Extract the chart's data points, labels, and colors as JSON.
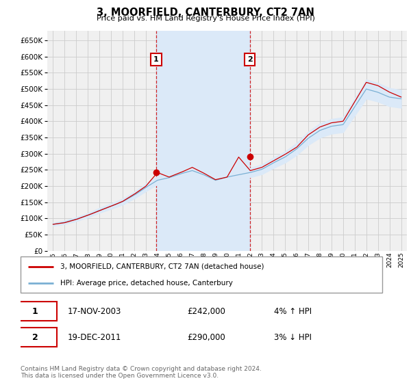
{
  "title": "3, MOORFIELD, CANTERBURY, CT2 7AN",
  "subtitle": "Price paid vs. HM Land Registry's House Price Index (HPI)",
  "ylim": [
    0,
    680000
  ],
  "ylabel_ticks": [
    0,
    50000,
    100000,
    150000,
    200000,
    250000,
    300000,
    350000,
    400000,
    450000,
    500000,
    550000,
    600000,
    650000
  ],
  "line_property_color": "#cc0000",
  "line_hpi_color": "#7ab0d4",
  "fill_color": "#dbe9f8",
  "plot_bg_color": "#f0f0f0",
  "grid_color": "#cccccc",
  "highlight_color": "#dbe9f8",
  "sale1_x_year": 2003.88,
  "sale1_y": 242000,
  "sale1_label": "1",
  "sale1_date": "17-NOV-2003",
  "sale1_price": "£242,000",
  "sale1_hpi_text": "4% ↑ HPI",
  "sale2_x_year": 2011.95,
  "sale2_y": 290000,
  "sale2_label": "2",
  "sale2_date": "19-DEC-2011",
  "sale2_price": "£290,000",
  "sale2_hpi_text": "3% ↓ HPI",
  "legend_label_property": "3, MOORFIELD, CANTERBURY, CT2 7AN (detached house)",
  "legend_label_hpi": "HPI: Average price, detached house, Canterbury",
  "footer": "Contains HM Land Registry data © Crown copyright and database right 2024.\nThis data is licensed under the Open Government Licence v3.0.",
  "xlim_left": 1994.5,
  "xlim_right": 2025.5,
  "x_tick_years": [
    1995,
    1996,
    1997,
    1998,
    1999,
    2000,
    2001,
    2002,
    2003,
    2004,
    2005,
    2006,
    2007,
    2008,
    2009,
    2010,
    2011,
    2012,
    2013,
    2014,
    2015,
    2016,
    2017,
    2018,
    2019,
    2020,
    2021,
    2022,
    2023,
    2024,
    2025
  ]
}
